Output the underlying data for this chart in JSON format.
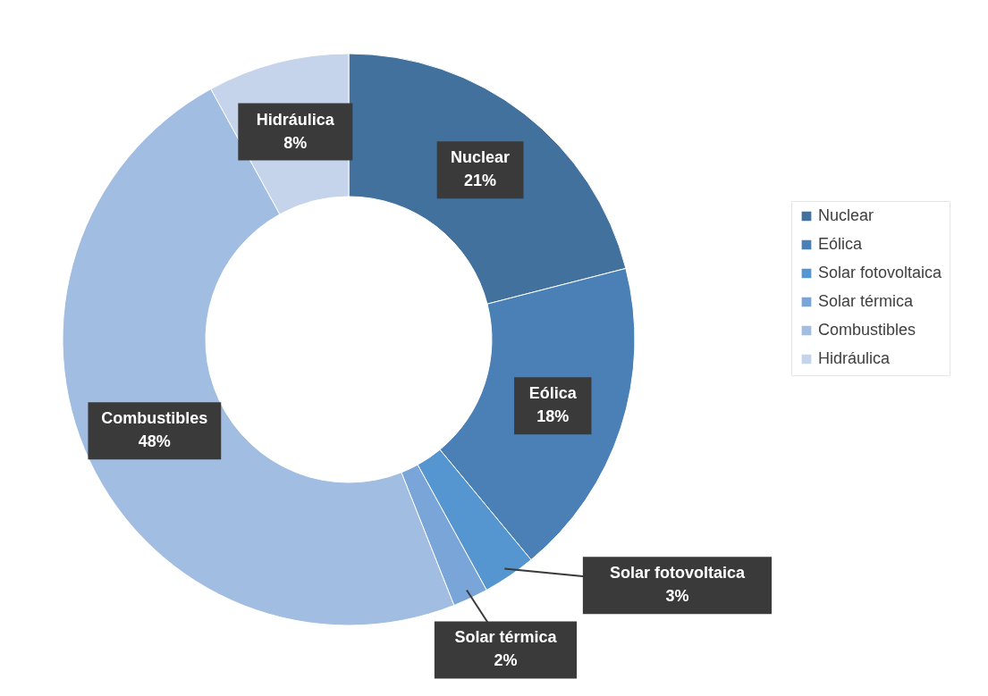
{
  "chart_data": {
    "type": "donut",
    "categories": [
      "Nuclear",
      "Eólica",
      "Solar fotovoltaica",
      "Solar térmica",
      "Combustibles",
      "Hidráulica"
    ],
    "values": [
      21,
      18,
      3,
      2,
      48,
      8
    ],
    "colors": [
      "#41719c",
      "#4a80b6",
      "#5596d0",
      "#7aa5d8",
      "#a2bde2",
      "#c5d4ea"
    ],
    "value_labels": [
      "21%",
      "18%",
      "3%",
      "2%",
      "48%",
      "8%"
    ],
    "legend": "right"
  }
}
